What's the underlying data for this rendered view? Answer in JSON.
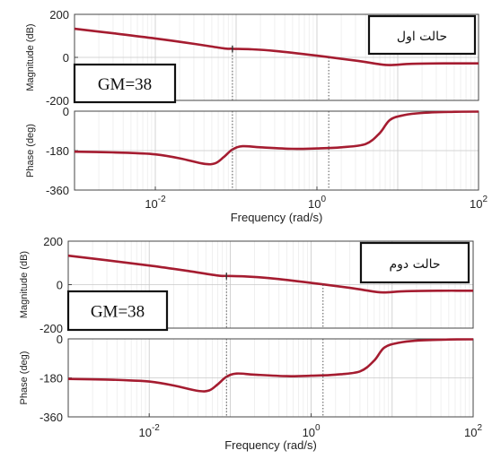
{
  "chart_data": [
    {
      "type": "line",
      "panel": "case-1",
      "case_label": "حالت اول",
      "gm_label": "GM=38",
      "xlabel": "Frequency  (rad/s)",
      "x_scale": "log",
      "xlim": [
        0.001,
        100
      ],
      "x_ticks": [
        {
          "value": 0.01,
          "base": "10",
          "exp": "-2"
        },
        {
          "value": 1,
          "base": "10",
          "exp": "0"
        },
        {
          "value": 100,
          "base": "10",
          "exp": "2"
        }
      ],
      "grid": true,
      "line_color": "#a51c30",
      "magnitude": {
        "ylabel": "Magnitude (dB)",
        "ylim": [
          -200,
          200
        ],
        "y_ticks": [
          "200",
          "0",
          "-200"
        ],
        "x": [
          0.001,
          0.003,
          0.01,
          0.03,
          0.07,
          0.09,
          0.15,
          0.3,
          1,
          3,
          6,
          8,
          15,
          40,
          100
        ],
        "values": [
          133,
          112,
          88,
          63,
          42,
          40,
          38,
          30,
          8,
          -15,
          -32,
          -36,
          -30,
          -28,
          -28
        ]
      },
      "phase": {
        "ylabel": "Phase (deg)",
        "ylim": [
          -360,
          0
        ],
        "y_ticks": [
          "0",
          "-180",
          "-360"
        ],
        "x": [
          0.001,
          0.003,
          0.006,
          0.01,
          0.02,
          0.04,
          0.055,
          0.07,
          0.09,
          0.12,
          0.2,
          0.5,
          1,
          2,
          4,
          6,
          8,
          12,
          20,
          50,
          100
        ],
        "values": [
          -185,
          -188,
          -192,
          -197,
          -215,
          -240,
          -238,
          -210,
          -175,
          -160,
          -165,
          -172,
          -170,
          -165,
          -150,
          -100,
          -40,
          -18,
          -8,
          -3,
          -2
        ]
      }
    },
    {
      "type": "line",
      "panel": "case-2",
      "case_label": "حالت دوم",
      "gm_label": "GM=38",
      "xlabel": "Frequency  (rad/s)",
      "x_scale": "log",
      "xlim": [
        0.001,
        100
      ],
      "x_ticks": [
        {
          "value": 0.01,
          "base": "10",
          "exp": "-2"
        },
        {
          "value": 1,
          "base": "10",
          "exp": "0"
        },
        {
          "value": 100,
          "base": "10",
          "exp": "2"
        }
      ],
      "grid": true,
      "line_color": "#a51c30",
      "magnitude": {
        "ylabel": "Magnitude (dB)",
        "ylim": [
          -200,
          200
        ],
        "y_ticks": [
          "200",
          "0",
          "-200"
        ],
        "x": [
          0.001,
          0.003,
          0.01,
          0.03,
          0.07,
          0.09,
          0.15,
          0.3,
          1,
          3,
          6,
          8,
          15,
          40,
          100
        ],
        "values": [
          133,
          112,
          88,
          63,
          42,
          40,
          38,
          30,
          8,
          -15,
          -32,
          -36,
          -30,
          -28,
          -28
        ]
      },
      "phase": {
        "ylabel": "Phase (deg)",
        "ylim": [
          -360,
          0
        ],
        "y_ticks": [
          "0",
          "-180",
          "-360"
        ],
        "x": [
          0.001,
          0.003,
          0.006,
          0.01,
          0.02,
          0.04,
          0.055,
          0.07,
          0.09,
          0.12,
          0.2,
          0.5,
          1,
          2,
          4,
          6,
          8,
          12,
          20,
          50,
          100
        ],
        "values": [
          -185,
          -188,
          -192,
          -197,
          -215,
          -240,
          -238,
          -210,
          -175,
          -160,
          -165,
          -172,
          -170,
          -165,
          -150,
          -100,
          -40,
          -18,
          -8,
          -3,
          -2
        ]
      }
    }
  ]
}
